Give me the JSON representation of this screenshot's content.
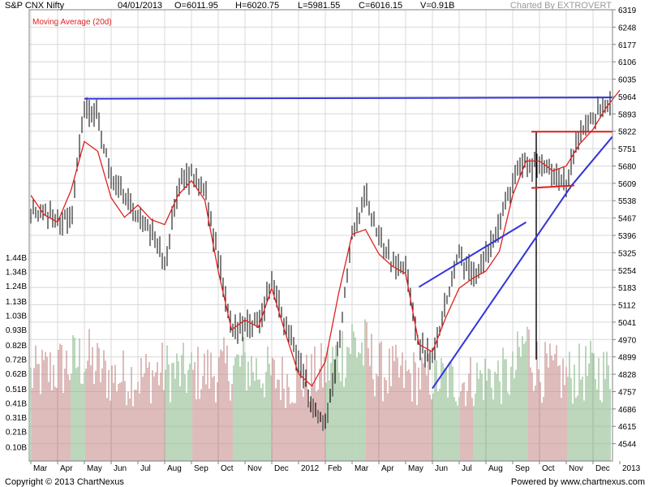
{
  "header": {
    "symbol": "S&P CNX Nifty",
    "date": "04/01/2013",
    "open": "O=6011.95",
    "high": "H=6020.75",
    "low": "L=5981.55",
    "close": "C=6016.15",
    "volume": "V=0.91B",
    "charted_by": "Charted By EXTROVERT"
  },
  "footer": {
    "copyright": "Copyright © 2013 ChartNexus",
    "powered_by": "Powered by www.chartnexus.com"
  },
  "colors": {
    "background": "#ffffff",
    "grid": "#d8d8d8",
    "candles": "#000000",
    "moving_average": "#e02020",
    "trendline_blue": "#3333dd",
    "trendline_red": "#e02020",
    "volume_up": "#8fbc8f",
    "volume_down": "#c89090"
  },
  "chart_data": {
    "type": "line",
    "title": "S&P CNX Nifty",
    "legend": [
      "Moving Average (20d)"
    ],
    "grid": true,
    "x_tick_labels": [
      "Mar",
      "Apr",
      "May",
      "Jun",
      "Jul",
      "Aug",
      "Sep",
      "Oct",
      "Nov",
      "Dec",
      "2012",
      "Feb",
      "Mar",
      "Apr",
      "May",
      "Jun",
      "Jul",
      "Aug",
      "Sep",
      "Oct",
      "Nov",
      "Dec",
      "2013"
    ],
    "price_axis": {
      "ylim": [
        4473,
        6319
      ],
      "ticks": [
        6319,
        6248,
        6177,
        6106,
        6035,
        5964,
        5893,
        5822,
        5751,
        5680,
        5609,
        5538,
        5467,
        5396,
        5325,
        5254,
        5183,
        5112,
        5041,
        4970,
        4899,
        4828,
        4757,
        4686,
        4615,
        4544
      ]
    },
    "volume_axis": {
      "ylim": [
        0,
        1.44
      ],
      "tick_labels": [
        "1.44B",
        "1.34B",
        "1.24B",
        "1.13B",
        "1.03B",
        "0.93B",
        "0.82B",
        "0.72B",
        "0.62B",
        "0.51B",
        "0.41B",
        "0.31B",
        "0.21B",
        "0.10B"
      ]
    },
    "series": [
      {
        "name": "S&P CNX Nifty",
        "x": [
          0,
          1.5,
          2.0,
          2.5,
          3.0,
          3.5,
          4.5,
          5.0,
          5.5,
          6.0,
          6.5,
          7.5,
          8.5,
          9.0,
          10.0,
          10.5,
          11.0,
          11.5,
          12.0,
          12.5,
          13.0,
          13.5,
          14.0,
          14.5,
          15.0,
          15.5,
          16.0,
          16.5,
          17.0,
          17.5,
          18.0,
          18.5,
          19.0,
          19.5,
          20.0,
          20.5,
          21.0,
          21.5,
          22.0
        ],
        "y": [
          5500,
          5460,
          5920,
          5870,
          5630,
          5550,
          5420,
          5270,
          5600,
          5650,
          5580,
          5000,
          5050,
          5200,
          4880,
          4700,
          4620,
          4950,
          5400,
          5560,
          5400,
          5280,
          5250,
          4950,
          4880,
          5120,
          5330,
          5220,
          5300,
          5450,
          5620,
          5700,
          5680,
          5640,
          5620,
          5820,
          5880,
          5930,
          6000
        ]
      },
      {
        "name": "Moving Average (20d)",
        "x": [
          0,
          0.5,
          1.0,
          1.5,
          2.0,
          2.5,
          3.0,
          3.5,
          4.0,
          4.5,
          5.0,
          5.5,
          6.0,
          6.5,
          7.0,
          7.5,
          8.0,
          8.5,
          9.0,
          9.5,
          10.0,
          10.5,
          11.0,
          11.5,
          12.0,
          12.5,
          13.0,
          13.5,
          14.0,
          14.5,
          15.0,
          15.5,
          16.0,
          16.5,
          17.0,
          17.5,
          18.0,
          18.5,
          19.0,
          19.5,
          20.0,
          20.5,
          21.0,
          21.5,
          22.0
        ],
        "y": [
          5560,
          5480,
          5450,
          5580,
          5780,
          5740,
          5550,
          5470,
          5520,
          5460,
          5440,
          5560,
          5620,
          5540,
          5250,
          5010,
          5050,
          5020,
          5180,
          5000,
          4830,
          4780,
          4880,
          5160,
          5400,
          5420,
          5320,
          5270,
          5240,
          4950,
          4920,
          5060,
          5180,
          5220,
          5250,
          5330,
          5560,
          5700,
          5700,
          5660,
          5680,
          5770,
          5830,
          5920,
          5990
        ]
      }
    ],
    "volume_series": {
      "name": "Volume",
      "x": [
        0,
        1.5,
        2.0,
        3.0,
        4.0,
        5.0,
        6.0,
        7.0,
        8.0,
        9.0,
        10.0,
        11.0,
        12.0,
        12.5,
        13.0,
        14.0,
        15.0,
        16.0,
        17.0,
        18.0,
        18.5,
        19.0,
        20.0,
        21.0,
        22.0
      ],
      "y": [
        0.7,
        0.8,
        0.85,
        0.7,
        0.7,
        0.75,
        0.72,
        0.75,
        0.8,
        0.7,
        0.65,
        0.75,
        1.0,
        0.9,
        0.75,
        0.7,
        0.7,
        0.65,
        0.7,
        0.7,
        1.0,
        0.75,
        0.7,
        0.75,
        0.7
      ]
    }
  }
}
